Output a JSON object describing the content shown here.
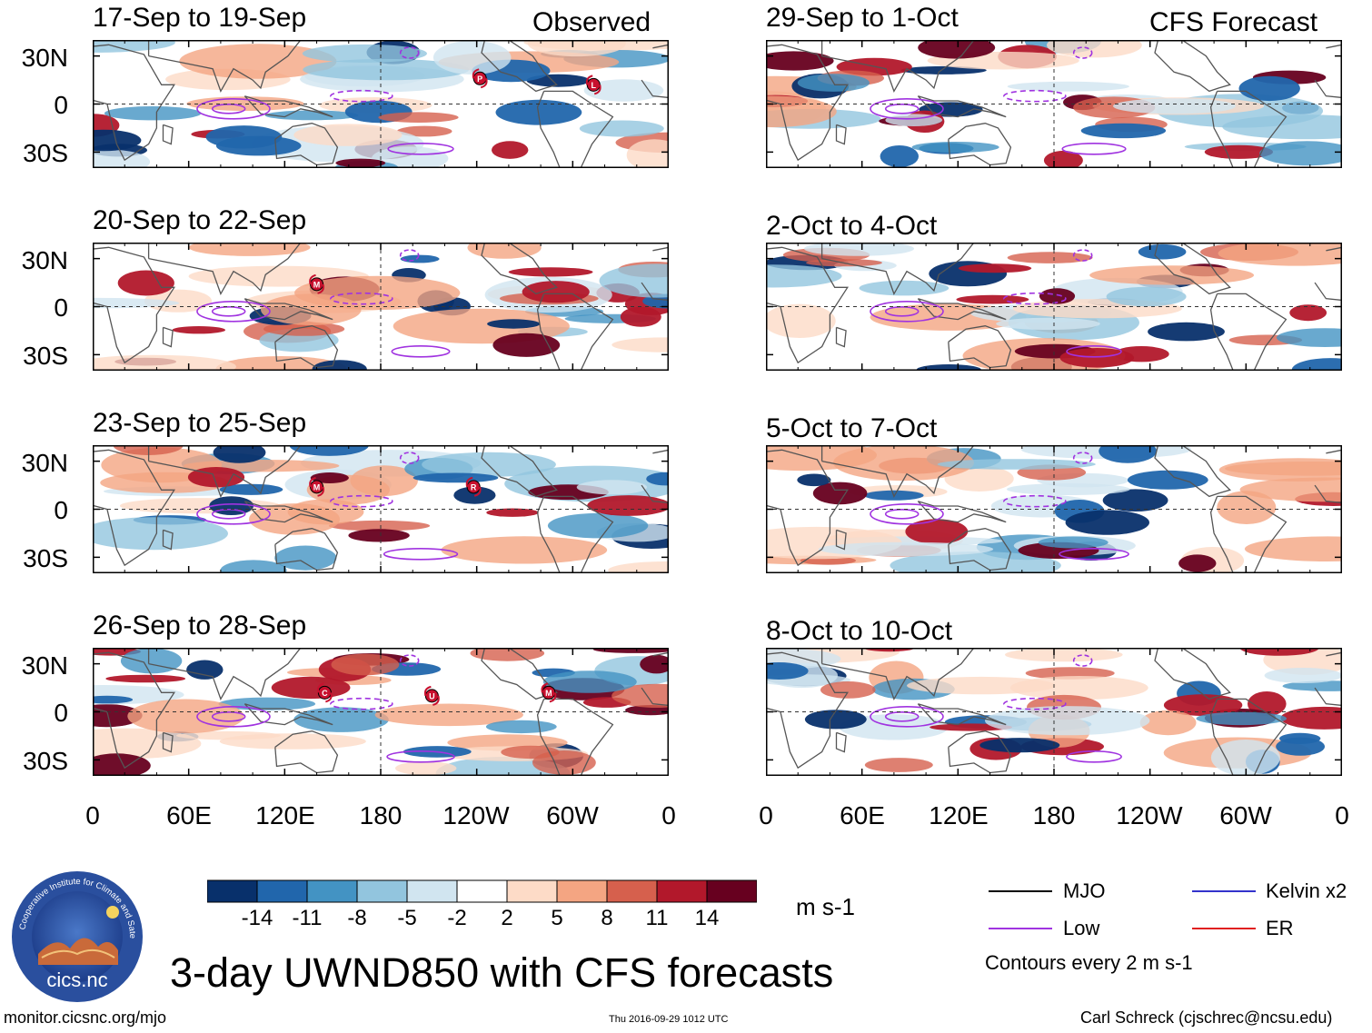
{
  "figure": {
    "title": "3-day UWND850 with CFS forecasts",
    "observed_label": "Observed",
    "forecast_label": "CFS Forecast",
    "footer_left": "monitor.cicsnc.org/mjo",
    "footer_center": "Thu 2016-09-29 1012 UTC",
    "footer_right": "Carl Schreck (cjschrec@ncsu.edu)"
  },
  "axes": {
    "lat_labels": [
      "30N",
      "0",
      "30S"
    ],
    "lon_labels": [
      "0",
      "60E",
      "120E",
      "180",
      "120W",
      "60W",
      "0"
    ]
  },
  "panels": {
    "observed": [
      {
        "title": "17-Sep to 19-Sep",
        "storms": [
          "P",
          "L"
        ]
      },
      {
        "title": "20-Sep to 22-Sep",
        "storms": [
          "M"
        ]
      },
      {
        "title": "23-Sep to 25-Sep",
        "storms": [
          "M",
          "R"
        ]
      },
      {
        "title": "26-Sep to 28-Sep",
        "storms": [
          "C",
          "U",
          "M"
        ]
      }
    ],
    "forecast": [
      {
        "title": "29-Sep to 1-Oct"
      },
      {
        "title": "2-Oct to 4-Oct"
      },
      {
        "title": "5-Oct to 7-Oct"
      },
      {
        "title": "8-Oct to 10-Oct"
      }
    ]
  },
  "colorbar": {
    "unit": "m s-1",
    "ticks": [
      "-14",
      "-11",
      "-8",
      "-5",
      "-2",
      "2",
      "5",
      "8",
      "11",
      "14"
    ],
    "colors": [
      "#08306b",
      "#2166ac",
      "#4393c3",
      "#92c5de",
      "#d1e5f0",
      "#ffffff",
      "#fddbc7",
      "#f4a582",
      "#d6604d",
      "#b2182b",
      "#67001f"
    ]
  },
  "legend": {
    "items": [
      {
        "label": "MJO",
        "color": "#000000"
      },
      {
        "label": "Kelvin x2",
        "color": "#3333cc"
      },
      {
        "label": "Low",
        "color": "#a033e0"
      },
      {
        "label": "ER",
        "color": "#e02020"
      }
    ],
    "note": "Contours every 2 m s-1"
  },
  "logo": {
    "text": "cics.nc",
    "ring_text": "Cooperative Institute for Climate and Satellites"
  }
}
